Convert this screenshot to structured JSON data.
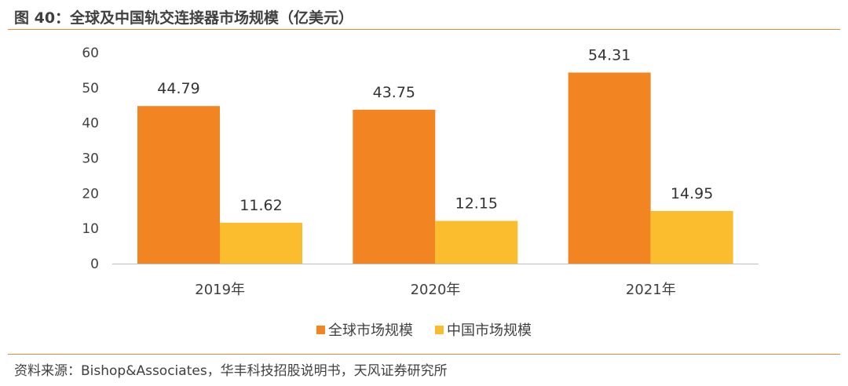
{
  "figure": {
    "title": "图 40：全球及中国轨交连接器市场规模（亿美元）",
    "source": "资料来源：Bishop&Associates，华丰科技招股说明书，天风证券研究所"
  },
  "colors": {
    "accent_rule": "#e08a3a",
    "series_global": "#f28422",
    "series_china": "#fbbd2e",
    "axis": "#bfbfbf"
  },
  "chart_data": {
    "type": "bar",
    "title": "",
    "xlabel": "",
    "ylabel": "",
    "categories": [
      "2019年",
      "2020年",
      "2021年"
    ],
    "series": [
      {
        "name": "全球市场规模",
        "values": [
          44.79,
          43.75,
          54.31
        ],
        "labels": [
          "44.79",
          "43.75",
          "54.31"
        ]
      },
      {
        "name": "中国市场规模",
        "values": [
          11.62,
          12.15,
          14.95
        ],
        "labels": [
          "11.62",
          "12.15",
          "14.95"
        ]
      }
    ],
    "ylim": [
      0,
      60
    ],
    "yticks": [
      0,
      10,
      20,
      30,
      40,
      50,
      60
    ],
    "grid": false,
    "legend": "bottom"
  }
}
